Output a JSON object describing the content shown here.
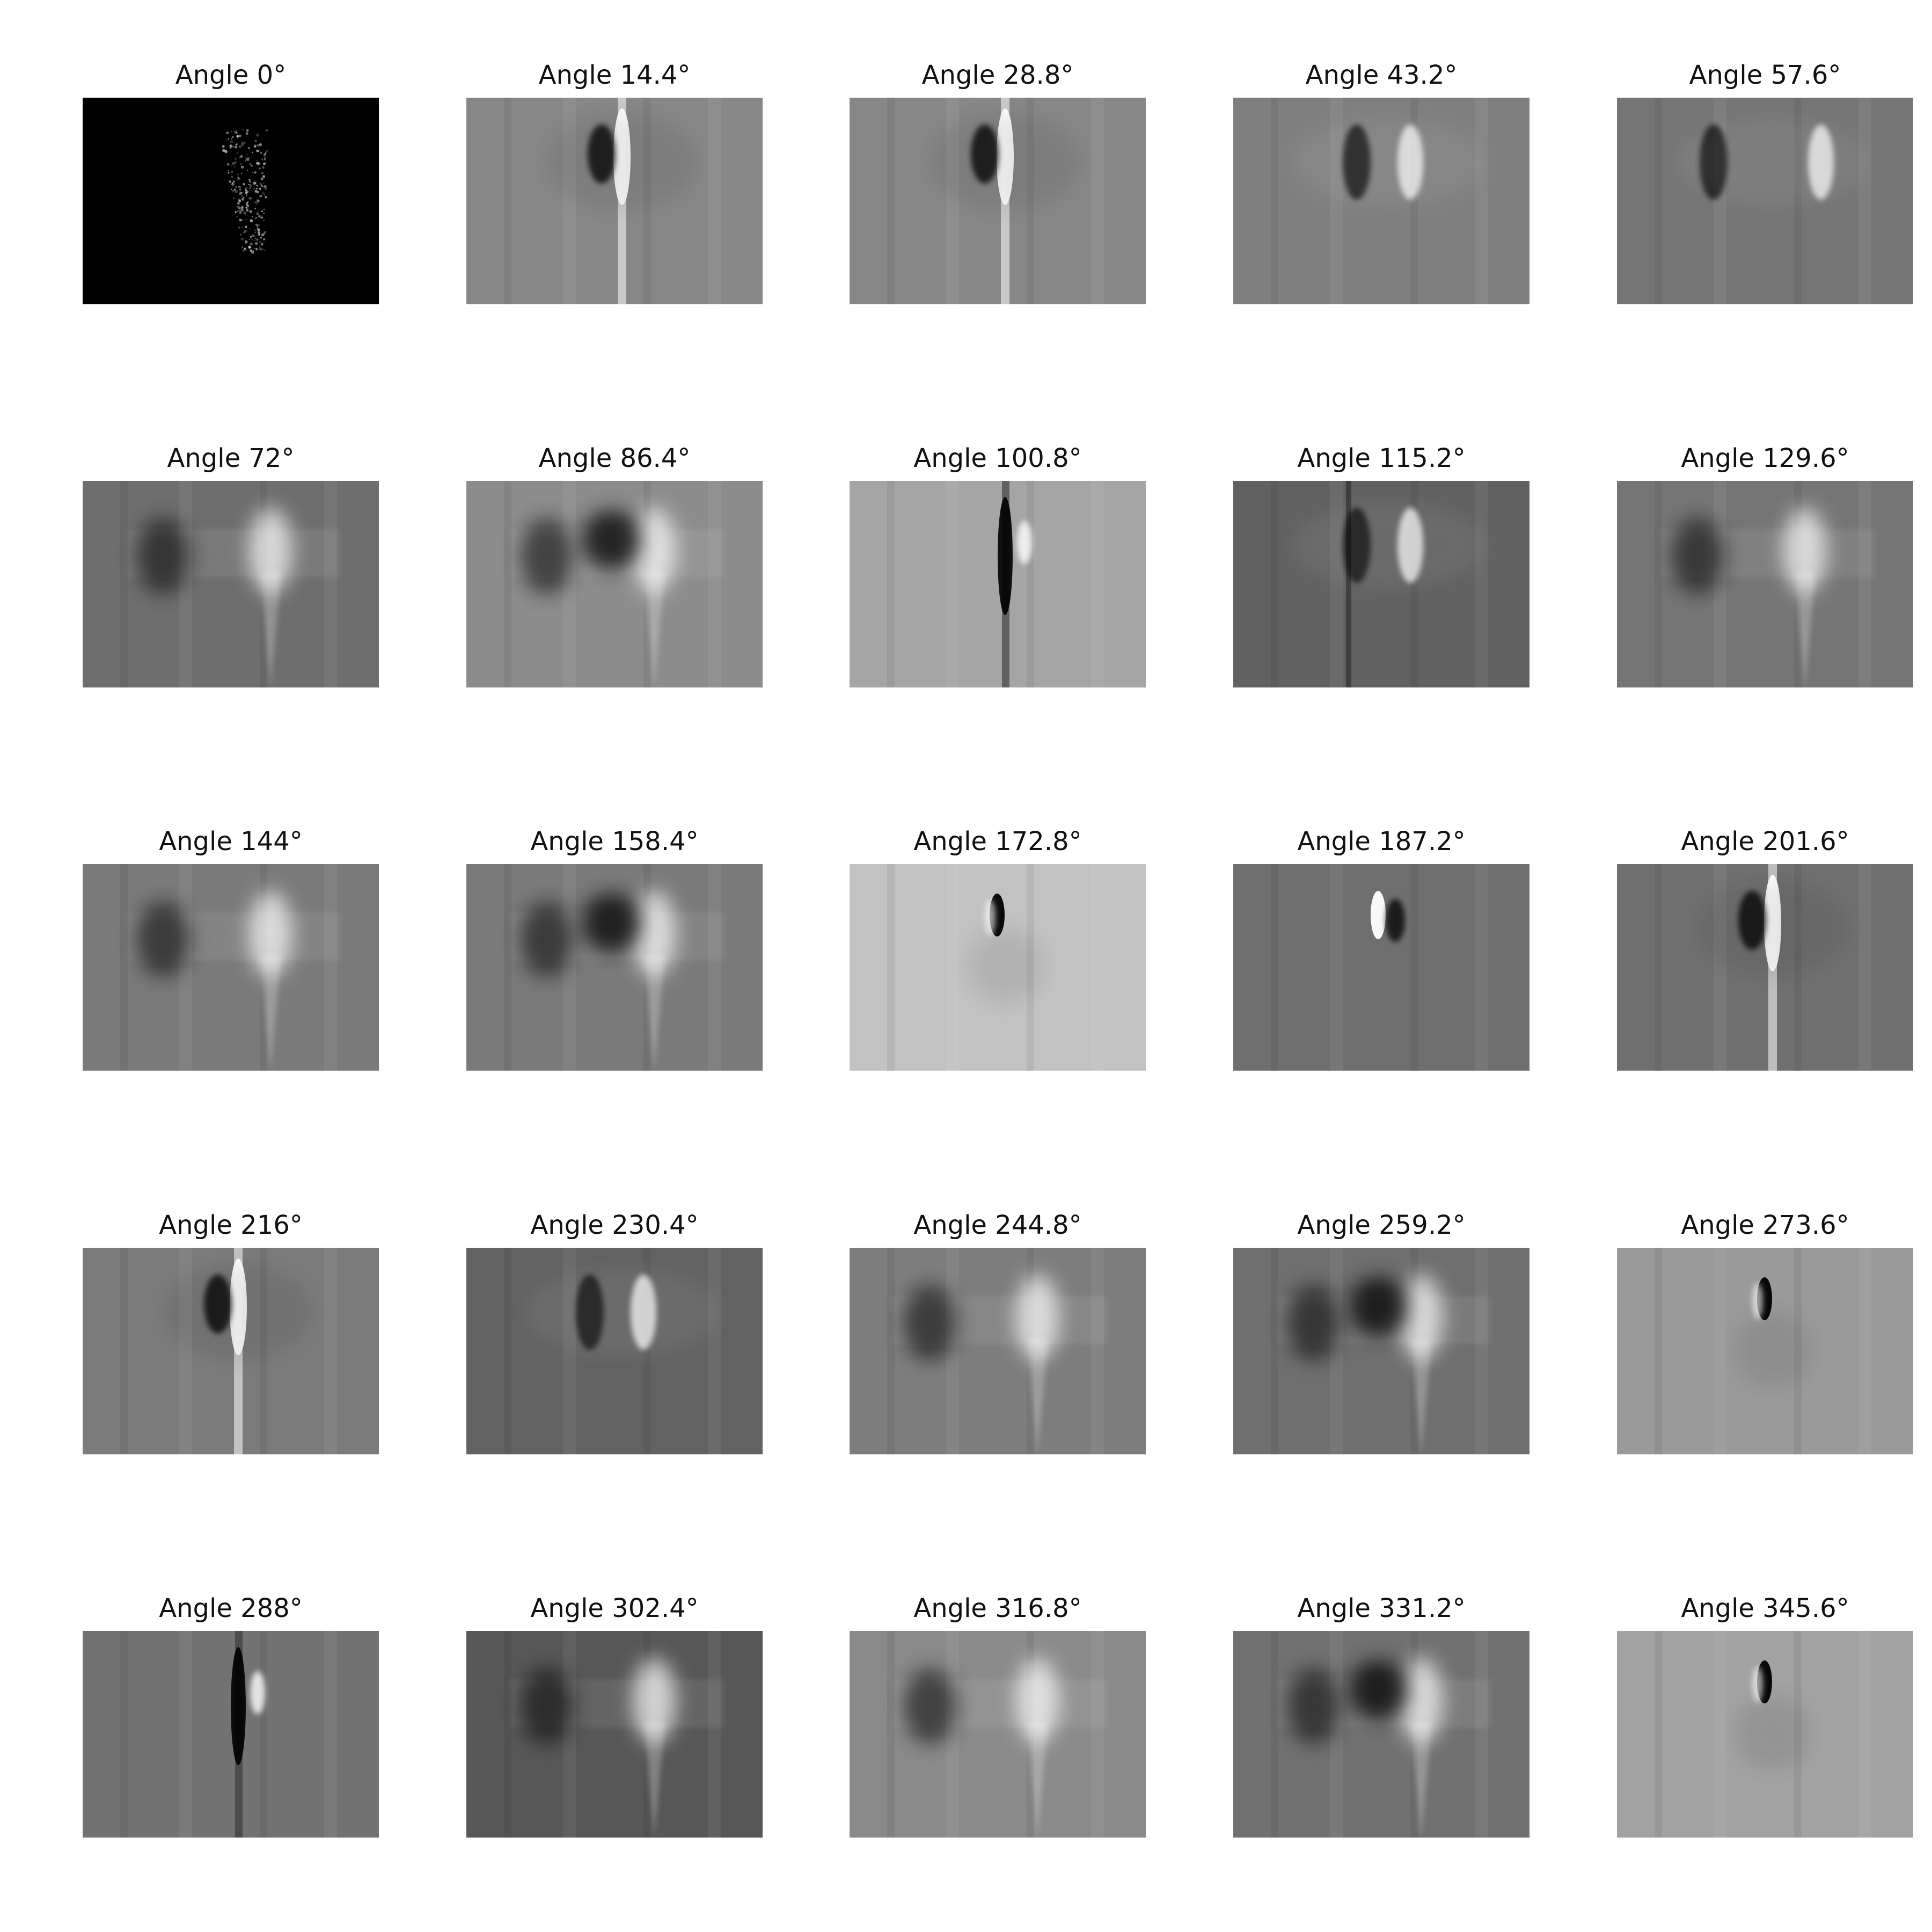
{
  "figure": {
    "panels": [
      {
        "title": "Angle 0°",
        "tone": "#000000",
        "style": "sparse"
      },
      {
        "title": "Angle 14.4°",
        "tone": "#878787",
        "style": "vertical-bright"
      },
      {
        "title": "Angle 28.8°",
        "tone": "#878787",
        "style": "vertical-bright"
      },
      {
        "title": "Angle 43.2°",
        "tone": "#7f7f7f",
        "style": "pair"
      },
      {
        "title": "Angle 57.6°",
        "tone": "#757575",
        "style": "pair-wide"
      },
      {
        "title": "Angle 72°",
        "tone": "#6e6e6e",
        "style": "band"
      },
      {
        "title": "Angle 86.4°",
        "tone": "#8c8c8c",
        "style": "band-dark-center"
      },
      {
        "title": "Angle 100.8°",
        "tone": "#a5a5a5",
        "style": "vertical-dark"
      },
      {
        "title": "Angle 115.2°",
        "tone": "#616161",
        "style": "pair-dark"
      },
      {
        "title": "Angle 129.6°",
        "tone": "#757575",
        "style": "band"
      },
      {
        "title": "Angle 144°",
        "tone": "#7a7a7a",
        "style": "band"
      },
      {
        "title": "Angle 158.4°",
        "tone": "#7a7a7a",
        "style": "band-dark-center"
      },
      {
        "title": "Angle 172.8°",
        "tone": "#c2c2c2",
        "style": "blob-dark"
      },
      {
        "title": "Angle 187.2°",
        "tone": "#6f6f6f",
        "style": "blob-bright"
      },
      {
        "title": "Angle 201.6°",
        "tone": "#707070",
        "style": "vertical-bright"
      },
      {
        "title": "Angle 216°",
        "tone": "#7b7b7b",
        "style": "vertical-bright"
      },
      {
        "title": "Angle 230.4°",
        "tone": "#626262",
        "style": "pair"
      },
      {
        "title": "Angle 244.8°",
        "tone": "#7d7d7d",
        "style": "band"
      },
      {
        "title": "Angle 259.2°",
        "tone": "#6f6f6f",
        "style": "band-dark-center"
      },
      {
        "title": "Angle 273.6°",
        "tone": "#9a9a9a",
        "style": "blob-dark"
      },
      {
        "title": "Angle 288°",
        "tone": "#727272",
        "style": "vertical-dark"
      },
      {
        "title": "Angle 302.4°",
        "tone": "#575757",
        "style": "band"
      },
      {
        "title": "Angle 316.8°",
        "tone": "#8a8a8a",
        "style": "band"
      },
      {
        "title": "Angle 331.2°",
        "tone": "#717171",
        "style": "band-dark-center"
      },
      {
        "title": "Angle 345.6°",
        "tone": "#a2a2a2",
        "style": "blob-dark"
      }
    ]
  }
}
